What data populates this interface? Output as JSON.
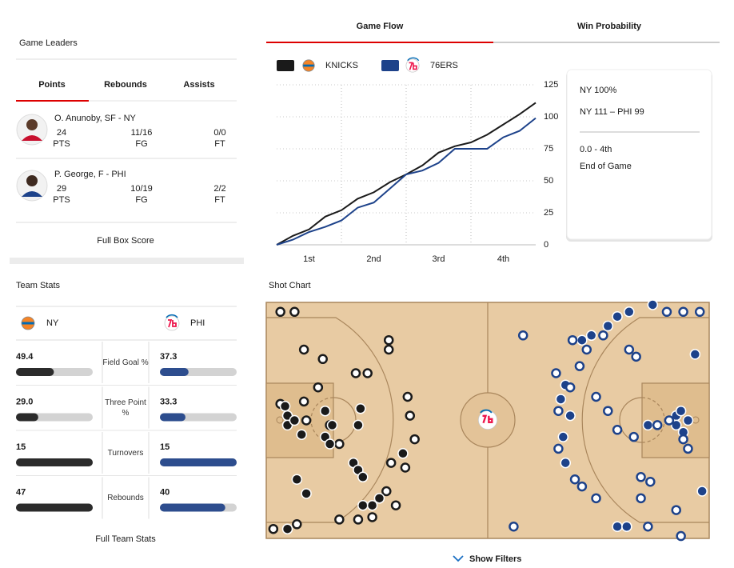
{
  "game_leaders": {
    "title": "Game Leaders",
    "tabs": [
      "Points",
      "Rebounds",
      "Assists"
    ],
    "players": [
      {
        "byline": "O. Anunoby, SF - NY",
        "stats": [
          {
            "value": 24,
            "label": "PTS"
          },
          {
            "value": "11/16",
            "label": "FG"
          },
          {
            "value": "0/0",
            "label": "FT"
          }
        ]
      },
      {
        "byline": "P. George, F - PHI",
        "stats": [
          {
            "value": 29,
            "label": "PTS"
          },
          {
            "value": "10/19",
            "label": "FG"
          },
          {
            "value": "2/2",
            "label": "FT"
          }
        ]
      }
    ],
    "link": "Full Box Score"
  },
  "team_stats": {
    "title": "Team Stats",
    "teams": [
      "NY",
      "PHI"
    ],
    "colors": [
      "#2b2b2b",
      "#2d4d8e"
    ],
    "rows": [
      {
        "label": "Field Goal %",
        "values": [
          49.4,
          37.3
        ]
      },
      {
        "label": "Three Point %",
        "values": [
          29.0,
          33.3
        ],
        "value_labels": [
          "29.0",
          "33.3"
        ]
      },
      {
        "label": "Turnovers",
        "values": [
          15,
          15
        ]
      },
      {
        "label": "Rebounds",
        "values": [
          47,
          40
        ]
      }
    ],
    "link": "Full Team Stats"
  },
  "flow_tabs": [
    "Game Flow",
    "Win Probability"
  ],
  "win_probability": {
    "headline": "NY 100%",
    "score": "NY 111 – PHI 99",
    "clock": "0.0 - 4th",
    "status": "End of Game"
  },
  "chart_data": [
    {
      "type": "line",
      "x": [
        0,
        3,
        6,
        9,
        12,
        15,
        18,
        21,
        24,
        27,
        30,
        33,
        36,
        39,
        42,
        45,
        48
      ],
      "xlim": [
        0,
        48
      ],
      "xticks": [
        {
          "value": 6,
          "label": "1st"
        },
        {
          "value": 18,
          "label": "2nd"
        },
        {
          "value": 30,
          "label": "3rd"
        },
        {
          "value": 42,
          "label": "4th"
        }
      ],
      "ylim": [
        0,
        125
      ],
      "yticks": [
        0,
        25,
        50,
        75,
        100,
        125
      ],
      "grid": true,
      "series": [
        {
          "name": "KNICKS",
          "color": "#1a1a1a",
          "values": [
            0,
            7,
            12,
            22,
            27,
            36,
            41,
            49,
            55,
            62,
            72,
            77,
            80,
            86,
            94,
            102,
            111
          ]
        },
        {
          "name": "76ERS",
          "color": "#1d428a",
          "values": [
            0,
            4,
            10,
            14,
            19,
            29,
            33,
            44,
            55,
            58,
            64,
            75,
            75,
            75,
            84,
            89,
            99
          ]
        }
      ]
    },
    {
      "type": "scatter",
      "title": "Shot Chart",
      "xlim": [
        0,
        94
      ],
      "ylim": [
        0,
        50
      ],
      "series": [
        {
          "color": "#1a1a1a",
          "filled": false,
          "x": [
            3,
            6,
            8,
            26,
            26,
            12,
            19,
            21.5,
            11,
            30,
            30.5,
            3,
            8,
            8.5,
            13.5,
            15.5,
            31.5,
            26.5,
            29.5,
            15.5,
            25.5,
            27.5,
            1.5,
            6.5,
            19.5,
            22.5
          ],
          "values": [
            2,
            2,
            10,
            8,
            10,
            12,
            15,
            15,
            18,
            20,
            24,
            21.5,
            21,
            25,
            26,
            30,
            29,
            34,
            35,
            46,
            40,
            43,
            48,
            47,
            46,
            45.5
          ]
        },
        {
          "color": "#1a1a1a",
          "filled": true,
          "x": [
            4,
            4.5,
            4.5,
            6,
            7.5,
            12.5,
            14,
            12.5,
            13.5,
            20,
            19.5,
            18.5,
            19.5,
            6.5,
            8.5,
            20.5,
            20.5,
            22.5,
            24,
            4.5,
            29
          ],
          "values": [
            22,
            24,
            26,
            25,
            28,
            23,
            26,
            28.5,
            30,
            22.5,
            26,
            34,
            35.5,
            37.5,
            40.5,
            37,
            43,
            43,
            41.5,
            48,
            32
          ]
        },
        {
          "color": "#1d428a",
          "filled": true,
          "x": [
            77,
            74.5,
            82,
            91,
            69,
            67,
            72.5,
            63.5,
            62.5,
            64.5,
            63,
            63.5,
            81,
            87,
            88,
            87,
            88.5,
            89.5,
            92.5,
            74.5,
            76.5
          ],
          "values": [
            2,
            3,
            0.5,
            11,
            7,
            8,
            5,
            17.5,
            20.5,
            24,
            28.5,
            34,
            26,
            24,
            23,
            26,
            27.5,
            25,
            40,
            47.5,
            47.5
          ]
        },
        {
          "color": "#1d428a",
          "filled": false,
          "x": [
            85,
            88.5,
            92,
            54.5,
            65,
            68,
            71.5,
            77,
            78.5,
            66.5,
            61.5,
            64.5,
            70,
            62,
            72.5,
            74.5,
            78,
            83,
            85.5,
            88.5,
            89.5,
            62,
            65.5,
            67,
            70,
            79.5,
            81.5,
            79.5,
            87,
            52.5,
            81,
            88
          ],
          "values": [
            2,
            2,
            2,
            7,
            8,
            10,
            7,
            10,
            11.5,
            13.5,
            15,
            18,
            20,
            23,
            23,
            27,
            28.5,
            26,
            25,
            29,
            31,
            31,
            37.5,
            39,
            41.5,
            37,
            38,
            41.5,
            44,
            47.5,
            47.5,
            49.5
          ]
        }
      ]
    }
  ],
  "filters_link": "Show Filters"
}
